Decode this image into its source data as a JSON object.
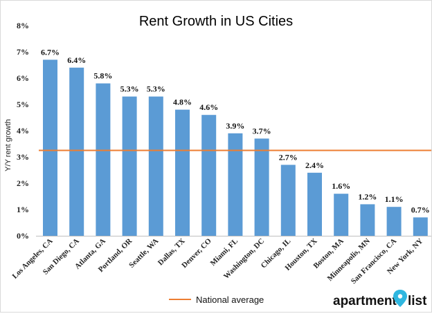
{
  "chart_data": {
    "type": "bar",
    "title": "Rent Growth in US Cities",
    "ylabel": "Y/Y rent growth",
    "xlabel": "",
    "ylim": [
      0,
      8
    ],
    "yticks": [
      "0%",
      "1%",
      "2%",
      "3%",
      "4%",
      "5%",
      "6%",
      "7%",
      "8%"
    ],
    "categories": [
      "Los Angeles, CA",
      "San Diego, CA",
      "Atlanta, GA",
      "Portland, OR",
      "Seattle, WA",
      "Dallas, TX",
      "Denver, CO",
      "Miami, FL",
      "Washington, DC",
      "Chicago, IL",
      "Houston, TX",
      "Boston, MA",
      "Minneapolis, MN",
      "San Francisco, CA",
      "New York, NY"
    ],
    "values": [
      6.7,
      6.4,
      5.8,
      5.3,
      5.3,
      4.8,
      4.6,
      3.9,
      3.7,
      2.7,
      2.4,
      1.6,
      1.2,
      1.1,
      0.7
    ],
    "data_labels": [
      "6.7%",
      "6.4%",
      "5.8%",
      "5.3%",
      "5.3%",
      "4.8%",
      "4.6%",
      "3.9%",
      "3.7%",
      "2.7%",
      "2.4%",
      "1.6%",
      "1.2%",
      "1.1%",
      "0.7%"
    ],
    "reference_line": {
      "name": "National average",
      "value": 3.25
    },
    "legend": {
      "placement": "bottom",
      "entries": [
        "National average"
      ]
    },
    "grid": false,
    "colors": {
      "bar": "#5B9BD5",
      "reference_line": "#ED7D31"
    }
  },
  "logo": {
    "text": "apartment",
    "suffix": "list",
    "pin_color": "#2FB7E0"
  }
}
